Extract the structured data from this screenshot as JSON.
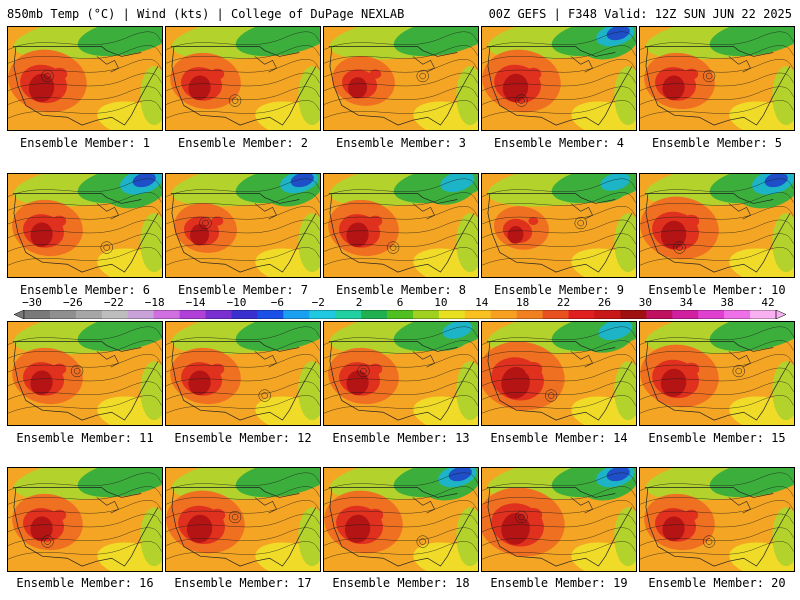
{
  "header": {
    "left_title": "850mb Temp (°C) | Wind (kts) | College of DuPage NEXLAB",
    "right_title": "00Z GEFS | F348 Valid: 12Z SUN JUN 22 2025"
  },
  "members": [
    {
      "label": "Ensemble Member: 1",
      "cold_ne": 0.5,
      "heat": 0.8
    },
    {
      "label": "Ensemble Member: 2",
      "cold_ne": 0.3,
      "heat": 0.7
    },
    {
      "label": "Ensemble Member: 3",
      "cold_ne": 0.4,
      "heat": 0.6
    },
    {
      "label": "Ensemble Member: 4",
      "cold_ne": 0.9,
      "heat": 0.8
    },
    {
      "label": "Ensemble Member: 5",
      "cold_ne": 0.4,
      "heat": 0.7
    },
    {
      "label": "Ensemble Member: 6",
      "cold_ne": 1.0,
      "heat": 0.7
    },
    {
      "label": "Ensemble Member: 7",
      "cold_ne": 0.9,
      "heat": 0.6
    },
    {
      "label": "Ensemble Member: 8",
      "cold_ne": 0.8,
      "heat": 0.7
    },
    {
      "label": "Ensemble Member: 9",
      "cold_ne": 0.7,
      "heat": 0.5
    },
    {
      "label": "Ensemble Member: 10",
      "cold_ne": 1.0,
      "heat": 0.8
    },
    {
      "label": "Ensemble Member: 11",
      "cold_ne": 0.4,
      "heat": 0.7
    },
    {
      "label": "Ensemble Member: 12",
      "cold_ne": 0.4,
      "heat": 0.7
    },
    {
      "label": "Ensemble Member: 13",
      "cold_ne": 0.7,
      "heat": 0.7
    },
    {
      "label": "Ensemble Member: 14",
      "cold_ne": 0.8,
      "heat": 0.9
    },
    {
      "label": "Ensemble Member: 15",
      "cold_ne": 0.6,
      "heat": 0.8
    },
    {
      "label": "Ensemble Member: 16",
      "cold_ne": 0.5,
      "heat": 0.7
    },
    {
      "label": "Ensemble Member: 17",
      "cold_ne": 0.6,
      "heat": 0.8
    },
    {
      "label": "Ensemble Member: 18",
      "cold_ne": 0.9,
      "heat": 0.8
    },
    {
      "label": "Ensemble Member: 19",
      "cold_ne": 0.9,
      "heat": 0.9
    },
    {
      "label": "Ensemble Member: 20",
      "cold_ne": 0.5,
      "heat": 0.7
    }
  ],
  "colorbar": {
    "labels": [
      "−30",
      "−26",
      "−22",
      "−18",
      "−14",
      "−10",
      "−6",
      "−2",
      "2",
      "6",
      "10",
      "14",
      "18",
      "22",
      "26",
      "30",
      "34",
      "38",
      "42"
    ],
    "colors": [
      "#7a7a7a",
      "#8f8f8f",
      "#a6a6a6",
      "#bdbdbd",
      "#c8a2d8",
      "#d070e0",
      "#b040d8",
      "#7a30d0",
      "#3a30d0",
      "#1a50e8",
      "#1aa0f0",
      "#20c8e0",
      "#20d0a0",
      "#20b050",
      "#50c020",
      "#a0d020",
      "#e8e020",
      "#f8c020",
      "#f8a020",
      "#f08020",
      "#e85020",
      "#e02020",
      "#c81818",
      "#a01010",
      "#c01060",
      "#d020a0",
      "#e040d0",
      "#f070e8",
      "#f8b0f0"
    ]
  },
  "palette": {
    "cold_deep": "#1f4fc8",
    "cold": "#1eb4c8",
    "cool_green": "#3cae3c",
    "yellow_green": "#b4d22c",
    "yellow": "#f0dc28",
    "orange": "#f5a524",
    "orange_red": "#f07021",
    "red": "#e0301e",
    "dark_red": "#b41414",
    "contour": "#1a1a1a",
    "border_line": "#222222"
  }
}
